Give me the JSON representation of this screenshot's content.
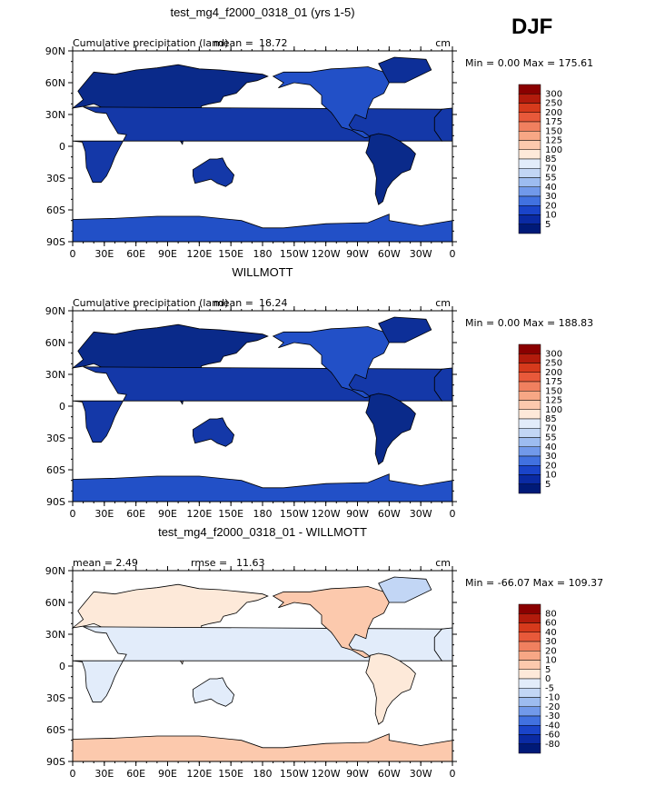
{
  "season": "DJF",
  "colors": {
    "ocean": "#ffffff",
    "land_low": "#0a2a8a",
    "coast": "#000000"
  },
  "chart_data": [
    {
      "type": "heatmap",
      "title": "test_mg4_f2000_0318_01 (yrs 1-5)",
      "subtitle_left": "Cumulative precipitation (land)",
      "stat_label": "mean =",
      "stat_value": "18.72",
      "units": "cm",
      "minmax": "Min =    0.00 Max = 175.61",
      "y_ticks": [
        "90N",
        "60N",
        "30N",
        "0",
        "30S",
        "60S",
        "90S"
      ],
      "x_ticks": [
        "0",
        "30E",
        "60E",
        "90E",
        "120E",
        "150E",
        "180",
        "150W",
        "120W",
        "90W",
        "60W",
        "30W",
        "0"
      ],
      "legend_labels": [
        "300",
        "250",
        "200",
        "175",
        "150",
        "125",
        "100",
        "85",
        "70",
        "55",
        "40",
        "30",
        "20",
        "10",
        "5"
      ],
      "legend_colors": [
        "#8a0000",
        "#b21b0c",
        "#d63a1c",
        "#e8593a",
        "#f0805f",
        "#f7a785",
        "#fcc9ad",
        "#fde9d9",
        "#e2ecfa",
        "#c2d6f5",
        "#9dbcf0",
        "#7199ea",
        "#4171e0",
        "#1a44c9",
        "#0a2aa3",
        "#001a78"
      ],
      "land_colors": [
        "#0a2a8a",
        "#1438a8",
        "#2250c7",
        "#0d2f98"
      ]
    },
    {
      "type": "heatmap",
      "title": "WILLMOTT",
      "subtitle_left": "Cumulative precipitation (land)",
      "stat_label": "mean =",
      "stat_value": "16.24",
      "units": "cm",
      "minmax": "Min =    0.00 Max = 188.83",
      "y_ticks": [
        "90N",
        "60N",
        "30N",
        "0",
        "30S",
        "60S",
        "90S"
      ],
      "x_ticks": [
        "0",
        "30E",
        "60E",
        "90E",
        "120E",
        "150E",
        "180",
        "150W",
        "120W",
        "90W",
        "60W",
        "30W",
        "0"
      ],
      "legend_labels": [
        "300",
        "250",
        "200",
        "175",
        "150",
        "125",
        "100",
        "85",
        "70",
        "55",
        "40",
        "30",
        "20",
        "10",
        "5"
      ],
      "legend_colors": [
        "#8a0000",
        "#b21b0c",
        "#d63a1c",
        "#e8593a",
        "#f0805f",
        "#f7a785",
        "#fcc9ad",
        "#fde9d9",
        "#e2ecfa",
        "#c2d6f5",
        "#9dbcf0",
        "#7199ea",
        "#4171e0",
        "#1a44c9",
        "#0a2aa3",
        "#001a78"
      ],
      "land_colors": [
        "#0a2a8a",
        "#1438a8",
        "#2250c7",
        "#0d2f98"
      ]
    },
    {
      "type": "heatmap",
      "title": "test_mg4_f2000_0318_01 - WILLMOTT",
      "subtitle_left": "mean =    2.49",
      "stat_label": "rmse =",
      "stat_value": "11.63",
      "units": "cm",
      "minmax": "Min = -66.07 Max = 109.37",
      "y_ticks": [
        "90N",
        "60N",
        "30N",
        "0",
        "30S",
        "60S",
        "90S"
      ],
      "x_ticks": [
        "0",
        "30E",
        "60E",
        "90E",
        "120E",
        "150E",
        "180",
        "150W",
        "120W",
        "90W",
        "60W",
        "30W",
        "0"
      ],
      "legend_labels": [
        "80",
        "60",
        "40",
        "30",
        "20",
        "10",
        "5",
        "0",
        "-5",
        "-10",
        "-20",
        "-30",
        "-40",
        "-60",
        "-80"
      ],
      "legend_colors": [
        "#8a0000",
        "#b21b0c",
        "#d63a1c",
        "#e8593a",
        "#f0805f",
        "#f7a785",
        "#fcc9ad",
        "#fde9d9",
        "#e2ecfa",
        "#c2d6f5",
        "#9dbcf0",
        "#7199ea",
        "#4171e0",
        "#1a44c9",
        "#0a2aa3",
        "#001a78"
      ],
      "land_colors": [
        "#fde9d9",
        "#e2ecfa",
        "#fcc9ad",
        "#c2d6f5"
      ]
    }
  ]
}
